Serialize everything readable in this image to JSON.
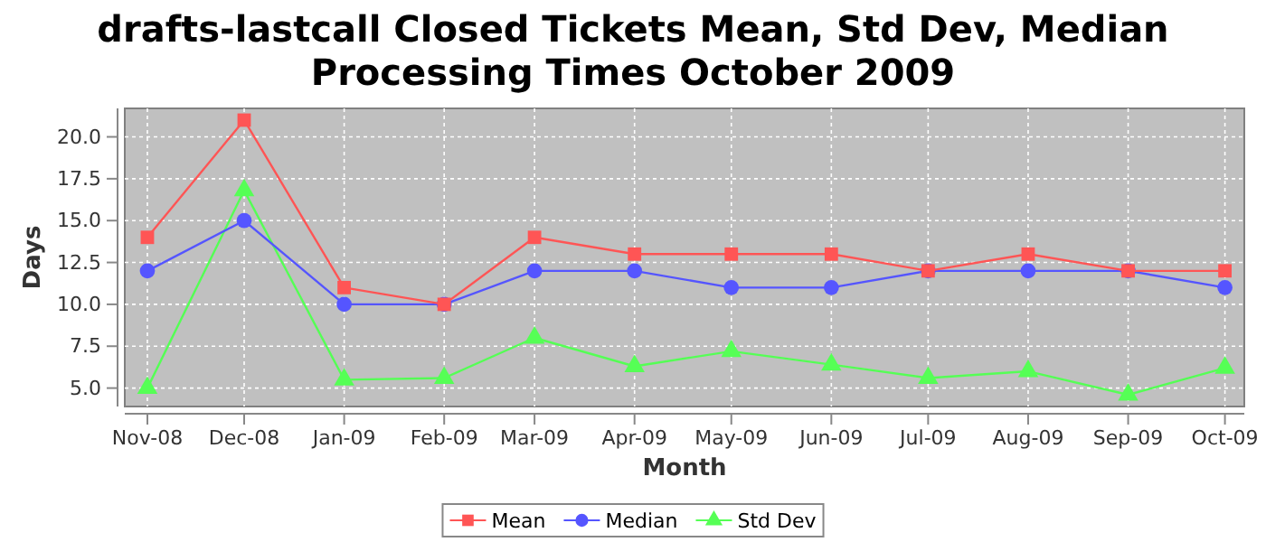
{
  "chart_data": {
    "type": "line",
    "title": "drafts-lastcall Closed Tickets Mean, Std Dev, Median Processing Times October 2009",
    "xlabel": "Month",
    "ylabel": "Days",
    "x": [
      "2008-11",
      "2008-12",
      "2009-01",
      "2009-02",
      "2009-03",
      "2009-04",
      "2009-05",
      "2009-06",
      "2009-07",
      "2009-08",
      "2009-09",
      "2009-10"
    ],
    "xlim": [
      "2008-10-25",
      "2009-10-07"
    ],
    "xticks": [
      {
        "value": "2008-11",
        "label": "Nov-08"
      },
      {
        "value": "2008-12",
        "label": "Dec-08"
      },
      {
        "value": "2009-01",
        "label": "Jan-09"
      },
      {
        "value": "2009-02",
        "label": "Feb-09"
      },
      {
        "value": "2009-03",
        "label": "Mar-09"
      },
      {
        "value": "2009-04",
        "label": "Apr-09"
      },
      {
        "value": "2009-05",
        "label": "May-09"
      },
      {
        "value": "2009-06",
        "label": "Jun-09"
      },
      {
        "value": "2009-07",
        "label": "Jul-09"
      },
      {
        "value": "2009-08",
        "label": "Aug-09"
      },
      {
        "value": "2009-09",
        "label": "Sep-09"
      },
      {
        "value": "2009-10",
        "label": "Oct-09"
      }
    ],
    "ylim": [
      3.9,
      21.7
    ],
    "yticks": [
      {
        "value": 5,
        "label": "5.0"
      },
      {
        "value": 7.5,
        "label": "7.5"
      },
      {
        "value": 10,
        "label": "10.0"
      },
      {
        "value": 12.5,
        "label": "12.5"
      },
      {
        "value": 15,
        "label": "15.0"
      },
      {
        "value": 17.5,
        "label": "17.5"
      },
      {
        "value": 20,
        "label": "20.0"
      }
    ],
    "grid": true,
    "legend": "bottom",
    "series": [
      {
        "name": "Mean",
        "color": "#ff5555",
        "marker": "square",
        "values": [
          14,
          21,
          11,
          10,
          14,
          13,
          13,
          13,
          12,
          13,
          12,
          12
        ]
      },
      {
        "name": "Median",
        "color": "#5555ff",
        "marker": "circle",
        "values": [
          12,
          15,
          10,
          10,
          12,
          12,
          11,
          11,
          12,
          12,
          12,
          11
        ]
      },
      {
        "name": "Std Dev",
        "color": "#55ff55",
        "marker": "triangle",
        "values": [
          5.0,
          16.8,
          5.5,
          5.6,
          8.0,
          6.3,
          7.2,
          6.4,
          5.6,
          6.0,
          4.6,
          6.2
        ]
      }
    ]
  }
}
